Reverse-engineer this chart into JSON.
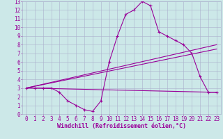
{
  "title": "",
  "xlabel": "Windchill (Refroidissement éolien,°C)",
  "background_color": "#cce8e8",
  "grid_color": "#aab0cc",
  "line_color": "#990099",
  "xlim": [
    -0.5,
    23.5
  ],
  "ylim": [
    0,
    13
  ],
  "xticks": [
    0,
    1,
    2,
    3,
    4,
    5,
    6,
    7,
    8,
    9,
    10,
    11,
    12,
    13,
    14,
    15,
    16,
    17,
    18,
    19,
    20,
    21,
    22,
    23
  ],
  "yticks": [
    0,
    1,
    2,
    3,
    4,
    5,
    6,
    7,
    8,
    9,
    10,
    11,
    12,
    13
  ],
  "line1_x": [
    0,
    1,
    2,
    3,
    4,
    5,
    6,
    7,
    8,
    9,
    10,
    11,
    12,
    13,
    14,
    15,
    16,
    17,
    18,
    19,
    20,
    21,
    22,
    23
  ],
  "line1_y": [
    3,
    3,
    3,
    3,
    2.5,
    1.5,
    1,
    0.5,
    0.3,
    1.5,
    6,
    9,
    11.5,
    12,
    13,
    12.5,
    9.5,
    9,
    8.5,
    8,
    7,
    4.3,
    2.5,
    2.5
  ],
  "line2_x": [
    0,
    23
  ],
  "line2_y": [
    3,
    7.5
  ],
  "line3_x": [
    0,
    23
  ],
  "line3_y": [
    3,
    8
  ],
  "line4_x": [
    0,
    23
  ],
  "line4_y": [
    3,
    2.5
  ],
  "tick_fontsize": 5.5,
  "label_fontsize": 6.0
}
